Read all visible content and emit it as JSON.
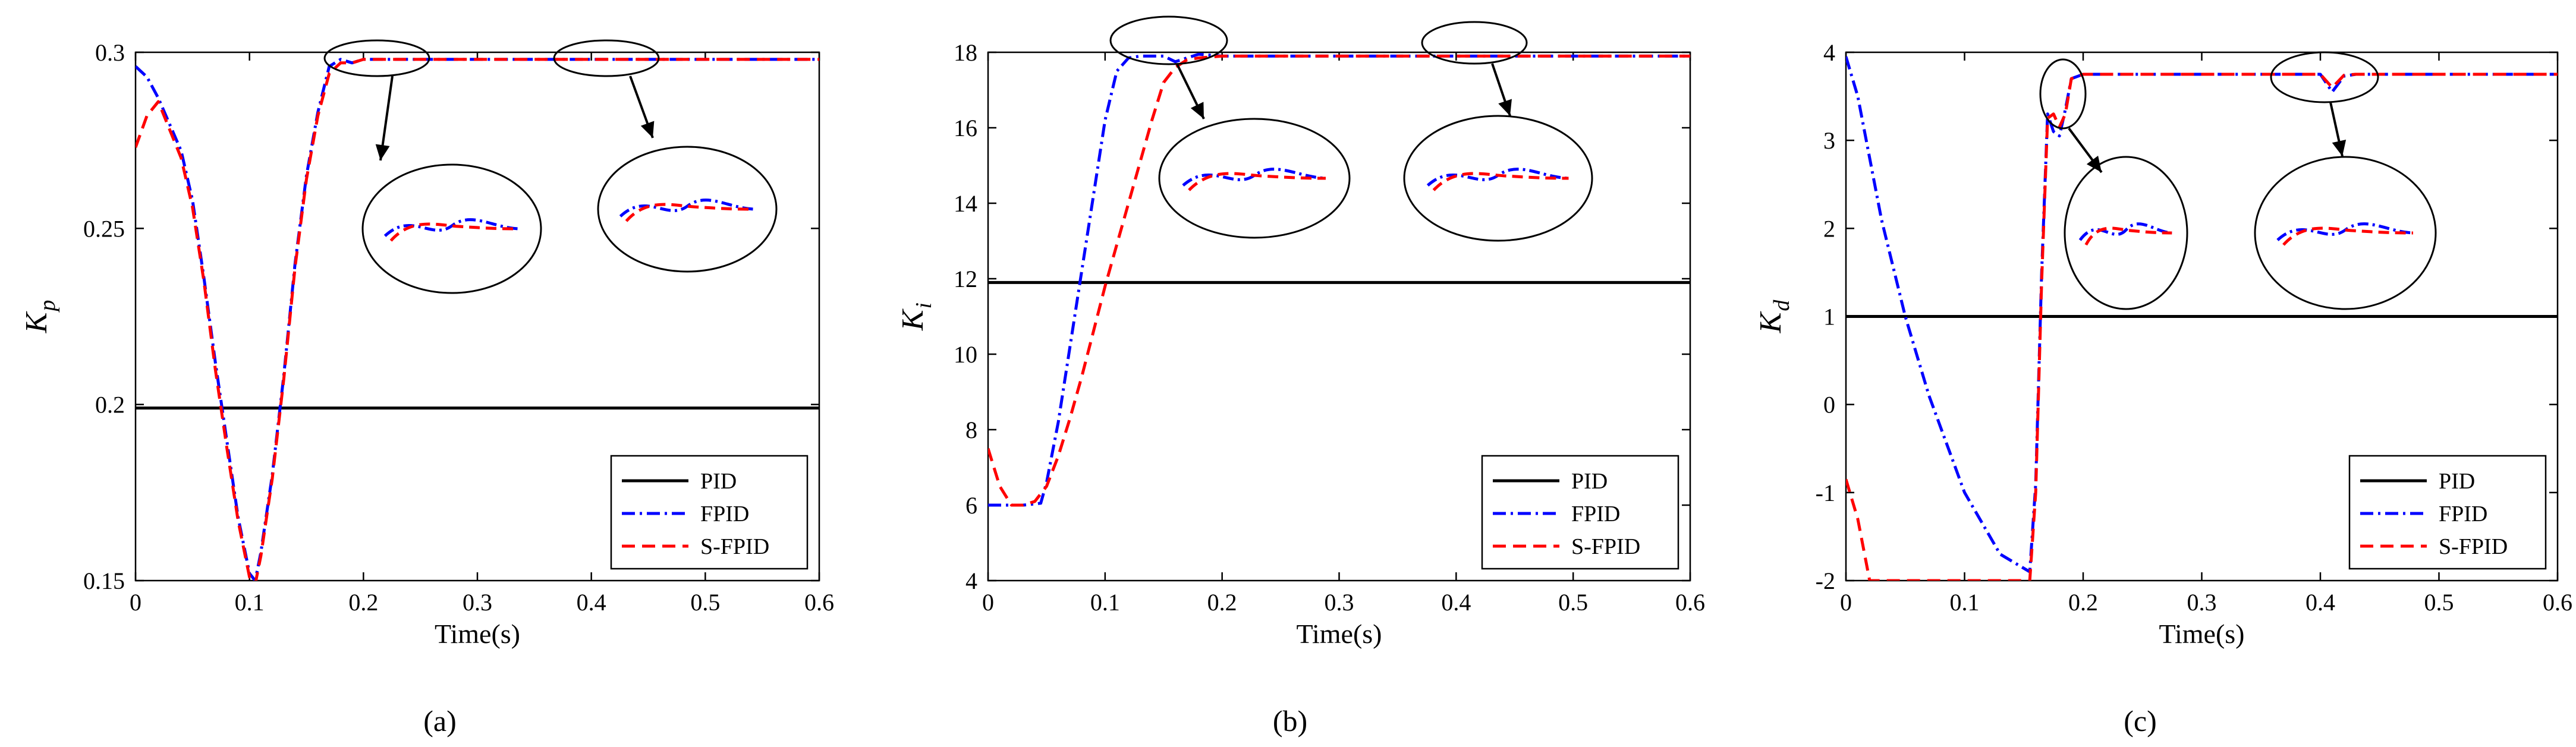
{
  "colors": {
    "pid": "#000000",
    "fpid": "#0000ff",
    "sfpid": "#ff0000"
  },
  "chart_data": [
    {
      "type": "line",
      "caption": "(a)",
      "xlabel": "Time(s)",
      "ylabel": "K",
      "ylabel_sub": "p",
      "xlim": [
        0,
        0.6
      ],
      "ylim": [
        0.15,
        0.3
      ],
      "xticks": [
        0,
        0.1,
        0.2,
        0.3,
        0.4,
        0.5,
        0.6
      ],
      "yticks": [
        0.15,
        0.2,
        0.25,
        0.3
      ],
      "xtick_labels": [
        "0",
        "0.1",
        "0.2",
        "0.3",
        "0.4",
        "0.5",
        "0.6"
      ],
      "ytick_labels": [
        "0.15",
        "0.2",
        "0.25",
        "0.3"
      ],
      "legend": [
        "PID",
        "FPID",
        "S-FPID"
      ],
      "legend_position": "bottom-right",
      "series": [
        {
          "name": "PID",
          "x": [
            0,
            0.6
          ],
          "y": [
            0.199,
            0.199
          ]
        },
        {
          "name": "FPID",
          "x": [
            0,
            0.01,
            0.02,
            0.04,
            0.05,
            0.06,
            0.07,
            0.08,
            0.09,
            0.1,
            0.105,
            0.11,
            0.12,
            0.13,
            0.14,
            0.15,
            0.16,
            0.17,
            0.18,
            0.19,
            0.2,
            0.22,
            0.25,
            0.3,
            0.4,
            0.5,
            0.6
          ],
          "y": [
            0.296,
            0.293,
            0.287,
            0.272,
            0.258,
            0.236,
            0.212,
            0.19,
            0.168,
            0.152,
            0.15,
            0.158,
            0.18,
            0.208,
            0.24,
            0.265,
            0.283,
            0.296,
            0.298,
            0.297,
            0.298,
            0.298,
            0.298,
            0.298,
            0.298,
            0.298,
            0.298
          ]
        },
        {
          "name": "S-FPID",
          "x": [
            0,
            0.01,
            0.02,
            0.03,
            0.04,
            0.05,
            0.06,
            0.07,
            0.08,
            0.09,
            0.1,
            0.105,
            0.11,
            0.12,
            0.13,
            0.14,
            0.15,
            0.16,
            0.17,
            0.18,
            0.19,
            0.2,
            0.22,
            0.25,
            0.3,
            0.4,
            0.5,
            0.6
          ],
          "y": [
            0.273,
            0.282,
            0.286,
            0.278,
            0.27,
            0.256,
            0.235,
            0.21,
            0.188,
            0.167,
            0.151,
            0.149,
            0.157,
            0.179,
            0.207,
            0.239,
            0.264,
            0.282,
            0.294,
            0.297,
            0.297,
            0.298,
            0.298,
            0.298,
            0.298,
            0.298,
            0.298,
            0.298
          ]
        }
      ]
    },
    {
      "type": "line",
      "caption": "(b)",
      "xlabel": "Time(s)",
      "ylabel": "K",
      "ylabel_sub": "i",
      "xlim": [
        0,
        0.6
      ],
      "ylim": [
        4,
        18
      ],
      "xticks": [
        0,
        0.1,
        0.2,
        0.3,
        0.4,
        0.5,
        0.6
      ],
      "yticks": [
        4,
        6,
        8,
        10,
        12,
        14,
        16,
        18
      ],
      "xtick_labels": [
        "0",
        "0.1",
        "0.2",
        "0.3",
        "0.4",
        "0.5",
        "0.6"
      ],
      "ytick_labels": [
        "4",
        "6",
        "8",
        "10",
        "12",
        "14",
        "16",
        "18"
      ],
      "legend": [
        "PID",
        "FPID",
        "S-FPID"
      ],
      "legend_position": "bottom-right",
      "series": [
        {
          "name": "PID",
          "x": [
            0,
            0.6
          ],
          "y": [
            11.9,
            11.9
          ]
        },
        {
          "name": "FPID",
          "x": [
            0,
            0.03,
            0.045,
            0.05,
            0.06,
            0.07,
            0.08,
            0.09,
            0.1,
            0.11,
            0.12,
            0.13,
            0.15,
            0.16,
            0.17,
            0.18,
            0.2,
            0.3,
            0.4,
            0.5,
            0.6
          ],
          "y": [
            6,
            6,
            6.05,
            6.6,
            8.2,
            10.2,
            12.2,
            14.2,
            16.2,
            17.5,
            17.85,
            17.9,
            17.9,
            17.75,
            17.85,
            17.95,
            17.9,
            17.9,
            17.9,
            17.9,
            17.9
          ]
        },
        {
          "name": "S-FPID",
          "x": [
            0,
            0.01,
            0.02,
            0.03,
            0.04,
            0.05,
            0.06,
            0.07,
            0.08,
            0.09,
            0.1,
            0.11,
            0.12,
            0.13,
            0.14,
            0.15,
            0.16,
            0.17,
            0.18,
            0.2,
            0.3,
            0.4,
            0.5,
            0.6
          ],
          "y": [
            7.5,
            6.5,
            6,
            6,
            6.1,
            6.5,
            7.3,
            8.3,
            9.4,
            10.6,
            11.8,
            12.9,
            14,
            15.1,
            16.2,
            17.2,
            17.6,
            17.8,
            17.85,
            17.9,
            17.9,
            17.9,
            17.9,
            17.9
          ]
        }
      ]
    },
    {
      "type": "line",
      "caption": "(c)",
      "xlabel": "Time(s)",
      "ylabel": "K",
      "ylabel_sub": "d",
      "xlim": [
        0,
        0.6
      ],
      "ylim": [
        -2,
        4
      ],
      "xticks": [
        0,
        0.1,
        0.2,
        0.3,
        0.4,
        0.5,
        0.6
      ],
      "yticks": [
        -2,
        -1,
        0,
        1,
        2,
        3,
        4
      ],
      "xtick_labels": [
        "0",
        "0.1",
        "0.2",
        "0.3",
        "0.4",
        "0.5",
        "0.6"
      ],
      "ytick_labels": [
        "-2",
        "-1",
        "0",
        "1",
        "2",
        "3",
        "4"
      ],
      "legend": [
        "PID",
        "FPID",
        "S-FPID"
      ],
      "legend_position": "bottom-right",
      "series": [
        {
          "name": "PID",
          "x": [
            0,
            0.6
          ],
          "y": [
            1,
            1
          ]
        },
        {
          "name": "FPID",
          "x": [
            0,
            0.01,
            0.03,
            0.05,
            0.07,
            0.1,
            0.13,
            0.155,
            0.16,
            0.165,
            0.17,
            0.175,
            0.18,
            0.185,
            0.19,
            0.2,
            0.25,
            0.3,
            0.4,
            0.41,
            0.42,
            0.43,
            0.5,
            0.6
          ],
          "y": [
            3.95,
            3.5,
            2.1,
            1,
            0.1,
            -1,
            -1.7,
            -1.9,
            -0.9,
            1.5,
            3.3,
            3.1,
            3.05,
            3.35,
            3.7,
            3.75,
            3.75,
            3.75,
            3.75,
            3.55,
            3.73,
            3.75,
            3.75,
            3.75
          ]
        },
        {
          "name": "S-FPID",
          "x": [
            0,
            0.01,
            0.02,
            0.05,
            0.1,
            0.155,
            0.16,
            0.165,
            0.17,
            0.175,
            0.18,
            0.185,
            0.19,
            0.2,
            0.25,
            0.3,
            0.4,
            0.41,
            0.42,
            0.43,
            0.5,
            0.6
          ],
          "y": [
            -0.85,
            -1.3,
            -2,
            -2,
            -2,
            -2,
            -1,
            1.4,
            3.25,
            3.3,
            3.15,
            3.3,
            3.7,
            3.75,
            3.75,
            3.75,
            3.75,
            3.6,
            3.74,
            3.75,
            3.75,
            3.75
          ]
        }
      ]
    }
  ]
}
